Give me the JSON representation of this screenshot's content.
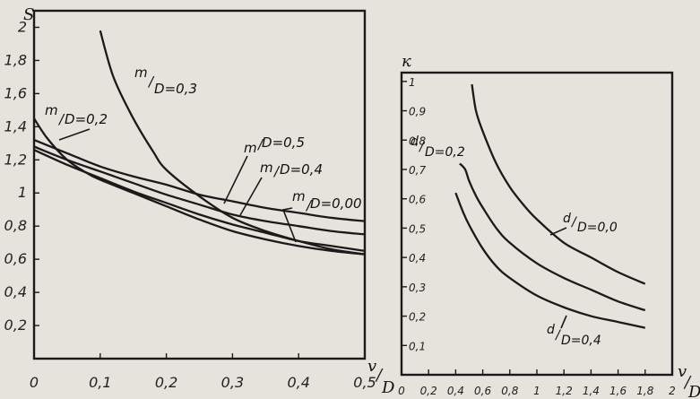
{
  "colors": {
    "paper": "#e6e2dc",
    "ink": "#1a1a1a"
  },
  "chart_data": [
    {
      "type": "line",
      "ylabel": "S",
      "xlabel": "v/D",
      "xlim": [
        0,
        0.5
      ],
      "ylim": [
        0,
        2.1
      ],
      "x_ticks": [
        "0",
        "0,1",
        "0,2",
        "0,3",
        "0,4",
        "0,5"
      ],
      "y_ticks": [
        "0,2",
        "0,4",
        "0,6",
        "0,8",
        "1",
        "1,2",
        "1,4",
        "1,6",
        "1,8",
        "2"
      ],
      "grid": false,
      "series": [
        {
          "name": "m/D=0,3",
          "label": "m/D=0,3",
          "x": [
            0.1,
            0.12,
            0.15,
            0.18,
            0.2,
            0.25,
            0.3,
            0.35,
            0.4,
            0.45,
            0.5
          ],
          "y": [
            1.98,
            1.7,
            1.45,
            1.25,
            1.14,
            0.98,
            0.85,
            0.77,
            0.71,
            0.66,
            0.63
          ]
        },
        {
          "name": "m/D=0,2",
          "label": "m/D=0,2",
          "x": [
            0.0,
            0.02,
            0.05,
            0.08,
            0.1,
            0.15,
            0.2,
            0.25,
            0.3,
            0.35,
            0.4,
            0.45,
            0.5
          ],
          "y": [
            1.45,
            1.33,
            1.2,
            1.12,
            1.08,
            1.0,
            0.92,
            0.84,
            0.77,
            0.72,
            0.68,
            0.65,
            0.63
          ]
        },
        {
          "name": "m/D=0,5",
          "label": "m/D=0,5",
          "x": [
            0.0,
            0.05,
            0.1,
            0.15,
            0.2,
            0.25,
            0.3,
            0.35,
            0.4,
            0.45,
            0.5
          ],
          "y": [
            1.32,
            1.24,
            1.16,
            1.1,
            1.05,
            0.99,
            0.95,
            0.91,
            0.88,
            0.85,
            0.83
          ]
        },
        {
          "name": "m/D=0,4",
          "label": "m/D=0,4",
          "x": [
            0.0,
            0.05,
            0.1,
            0.15,
            0.2,
            0.25,
            0.3,
            0.35,
            0.4,
            0.45,
            0.5
          ],
          "y": [
            1.28,
            1.2,
            1.13,
            1.06,
            0.99,
            0.93,
            0.87,
            0.83,
            0.8,
            0.77,
            0.75
          ]
        },
        {
          "name": "m/D=0,00",
          "label": "m/D=0,00",
          "x": [
            0.0,
            0.05,
            0.1,
            0.15,
            0.2,
            0.25,
            0.3,
            0.35,
            0.4,
            0.45,
            0.5
          ],
          "y": [
            1.26,
            1.17,
            1.09,
            1.01,
            0.94,
            0.87,
            0.81,
            0.76,
            0.71,
            0.68,
            0.65
          ]
        }
      ]
    },
    {
      "type": "line",
      "ylabel": "к",
      "xlabel": "v/D",
      "xlim": [
        0,
        2
      ],
      "ylim": [
        0,
        1.03
      ],
      "x_ticks": [
        "0",
        "0,2",
        "0,4",
        "0,6",
        "0,8",
        "1",
        "1,2",
        "1,4",
        "1,6",
        "1,8",
        "2"
      ],
      "y_ticks": [
        "0,1",
        "0,2",
        "0,3",
        "0,4",
        "0,5",
        "0,6",
        "0,7",
        "0,8",
        "0,9",
        "1"
      ],
      "grid": false,
      "series": [
        {
          "name": "d/D=0,0",
          "label": "d/D=0,0",
          "x": [
            0.52,
            0.55,
            0.6,
            0.7,
            0.8,
            0.9,
            1.0,
            1.2,
            1.4,
            1.6,
            1.8
          ],
          "y": [
            0.99,
            0.9,
            0.83,
            0.72,
            0.64,
            0.58,
            0.53,
            0.45,
            0.4,
            0.35,
            0.31
          ]
        },
        {
          "name": "d/D=0,2",
          "label": "d/D=0,2",
          "x": [
            0.43,
            0.47,
            0.5,
            0.55,
            0.6,
            0.7,
            0.8,
            1.0,
            1.2,
            1.4,
            1.6,
            1.8
          ],
          "y": [
            0.72,
            0.7,
            0.66,
            0.61,
            0.57,
            0.5,
            0.45,
            0.38,
            0.33,
            0.29,
            0.25,
            0.22
          ]
        },
        {
          "name": "d/D=0,4",
          "label": "d/D=0,4",
          "x": [
            0.4,
            0.45,
            0.5,
            0.6,
            0.7,
            0.8,
            1.0,
            1.2,
            1.4,
            1.6,
            1.8
          ],
          "y": [
            0.62,
            0.56,
            0.51,
            0.43,
            0.37,
            0.33,
            0.27,
            0.23,
            0.2,
            0.18,
            0.16
          ]
        }
      ]
    }
  ],
  "labels": {
    "left": [
      {
        "num": "m",
        "den": "D",
        "val": "=0,3"
      },
      {
        "num": "m",
        "den": "D",
        "val": "=0,2"
      },
      {
        "num": "m",
        "den": "D",
        "val": "=0,5"
      },
      {
        "num": "m",
        "den": "D",
        "val": "=0,4"
      },
      {
        "num": "m",
        "den": "D",
        "val": "=0,00"
      }
    ],
    "right": [
      {
        "num": "d",
        "den": "D",
        "val": "=0,2"
      },
      {
        "num": "d",
        "den": "D",
        "val": "=0,0"
      },
      {
        "num": "d",
        "den": "D",
        "val": "=0,4"
      }
    ],
    "left_xaxis": {
      "num": "v",
      "den": "D"
    },
    "right_xaxis": {
      "num": "v",
      "den": "D"
    }
  }
}
